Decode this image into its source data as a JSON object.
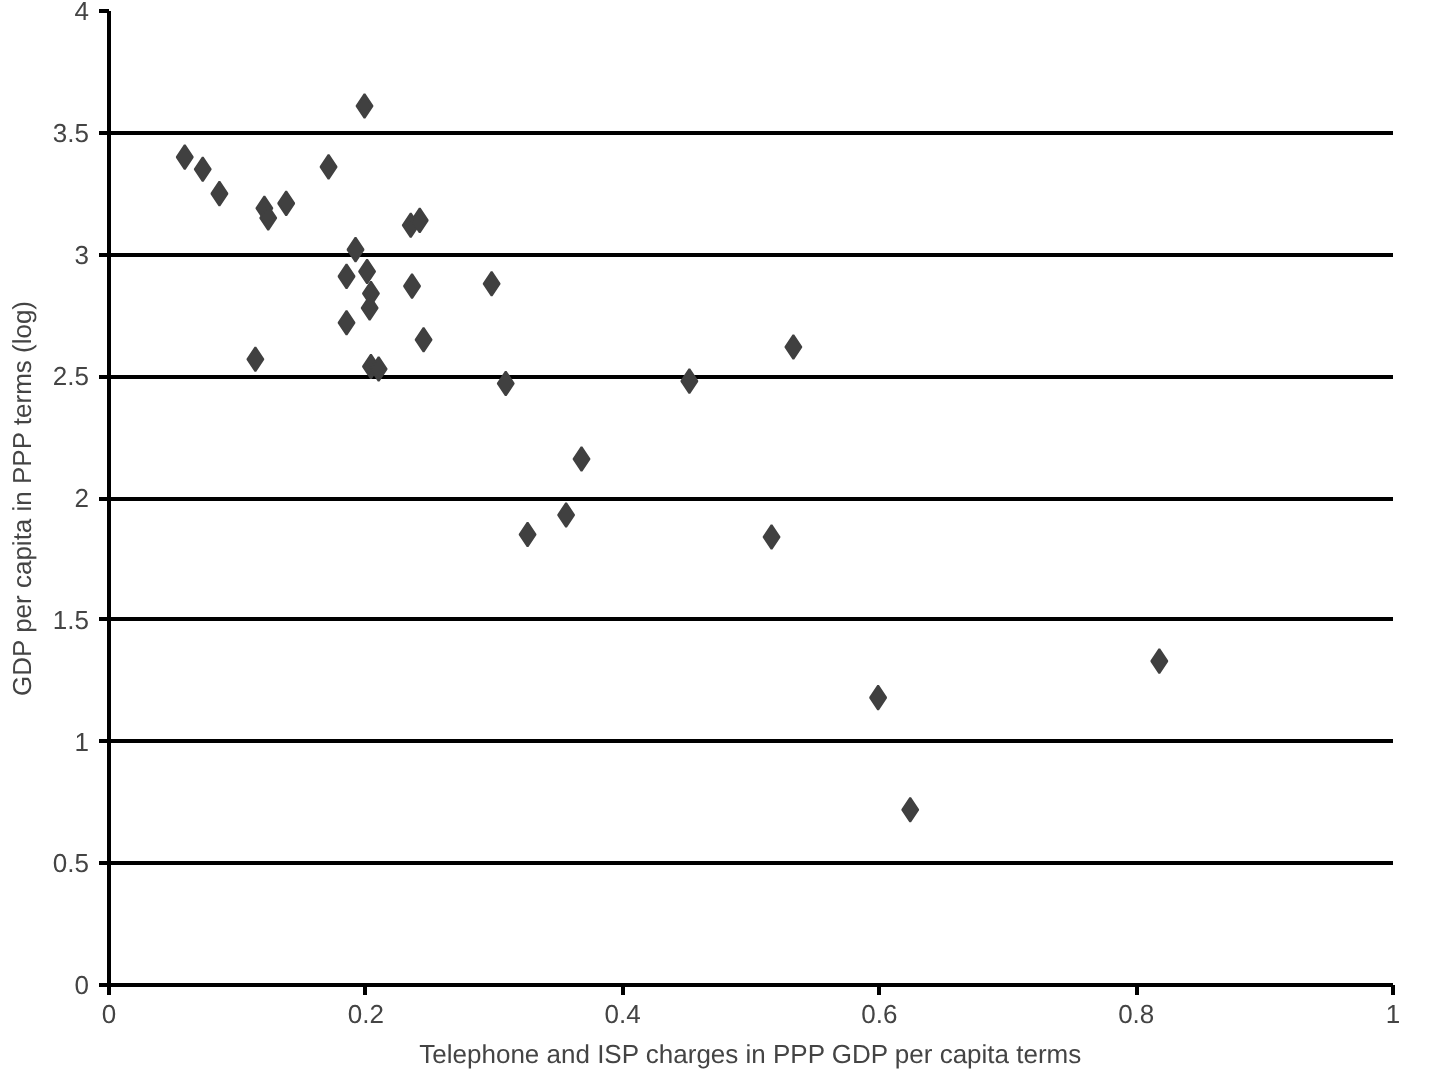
{
  "chart_data": {
    "type": "scatter",
    "xlabel": "Telephone and ISP charges in PPP GDP per capita terms",
    "ylabel": "GDP per capita in PPP terms (log)",
    "marker": "diamond",
    "grid": "y",
    "xlim": [
      0,
      1
    ],
    "xticks": [
      0,
      0.2,
      0.4,
      0.6,
      0.8,
      1
    ],
    "ylim": [
      0,
      4
    ],
    "yticks": [
      0,
      0.5,
      1,
      1.5,
      2,
      2.5,
      3,
      3.5,
      4
    ],
    "series": [
      {
        "color": "#404040",
        "x": [
          0.199,
          0.059,
          0.073,
          0.086,
          0.121,
          0.124,
          0.138,
          0.171,
          0.235,
          0.242,
          0.192,
          0.185,
          0.201,
          0.204,
          0.203,
          0.236,
          0.298,
          0.185,
          0.245,
          0.114,
          0.204,
          0.21,
          0.309,
          0.533,
          0.452,
          0.368,
          0.356,
          0.326,
          0.516,
          0.599,
          0.818,
          0.624
        ],
        "values": [
          3.61,
          3.4,
          3.35,
          3.25,
          3.19,
          3.15,
          3.21,
          3.36,
          3.12,
          3.14,
          3.02,
          2.91,
          2.93,
          2.84,
          2.78,
          2.87,
          2.88,
          2.72,
          2.65,
          2.57,
          2.54,
          2.53,
          2.47,
          2.62,
          2.48,
          2.16,
          1.93,
          1.85,
          1.84,
          1.18,
          1.33,
          0.72
        ]
      }
    ]
  }
}
